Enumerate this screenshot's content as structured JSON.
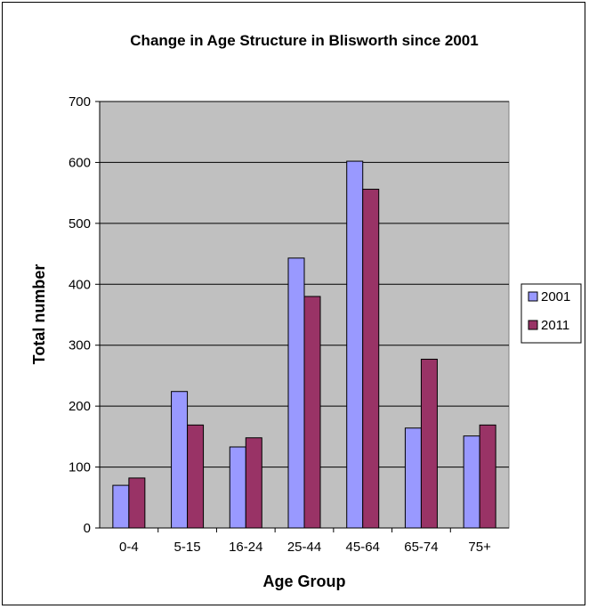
{
  "chart_data": {
    "type": "bar",
    "title": "Change in Age Structure in Blisworth since 2001",
    "xlabel": "Age Group",
    "ylabel": "Total number",
    "categories": [
      "0-4",
      "5-15",
      "16-24",
      "25-44",
      "45-64",
      "65-74",
      "75+"
    ],
    "series": [
      {
        "name": "2001",
        "color": "#9999ff",
        "values": [
          70,
          224,
          133,
          443,
          602,
          164,
          151
        ]
      },
      {
        "name": "2011",
        "color": "#993366",
        "values": [
          82,
          169,
          148,
          380,
          556,
          277,
          169
        ]
      }
    ],
    "ylim": [
      0,
      700
    ],
    "yticks": [
      "0",
      "100",
      "200",
      "300",
      "400",
      "500",
      "600",
      "700"
    ],
    "grid": true,
    "plot_background": "#c0c0c0",
    "legend_position": "right"
  }
}
